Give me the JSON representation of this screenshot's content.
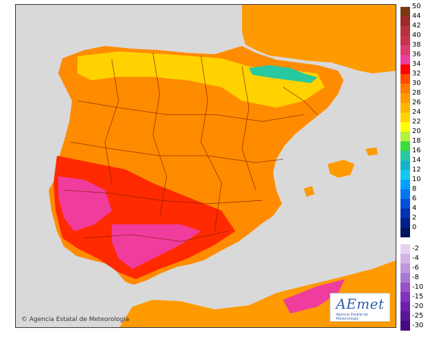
{
  "map": {
    "sea_color": "#d9d9d9",
    "land_color": "#ff9900",
    "attribution": "Agencia Estatal de Meteorología",
    "copyright_symbol": "©"
  },
  "logo": {
    "text": "AEmet",
    "subtitle": "Agencia Estatal de Meteorología"
  },
  "legend": {
    "positive": [
      {
        "label": "50",
        "color": "#7a3812"
      },
      {
        "label": "44",
        "color": "#9e2a2a"
      },
      {
        "label": "42",
        "color": "#b4323c"
      },
      {
        "label": "40",
        "color": "#c8324a"
      },
      {
        "label": "38",
        "color": "#dc3c6e"
      },
      {
        "label": "36",
        "color": "#f03c9c"
      },
      {
        "label": "34",
        "color": "#ff0000"
      },
      {
        "label": "32",
        "color": "#ff4a00"
      },
      {
        "label": "30",
        "color": "#ff7a00"
      },
      {
        "label": "28",
        "color": "#ff9a00"
      },
      {
        "label": "26",
        "color": "#ffb400"
      },
      {
        "label": "24",
        "color": "#ffd200"
      },
      {
        "label": "22",
        "color": "#ffff00"
      },
      {
        "label": "20",
        "color": "#b4f03c"
      },
      {
        "label": "18",
        "color": "#3cdc3c"
      },
      {
        "label": "16",
        "color": "#28c8a0"
      },
      {
        "label": "14",
        "color": "#14b4c8"
      },
      {
        "label": "12",
        "color": "#14c8f0"
      },
      {
        "label": "10",
        "color": "#00a0ff"
      },
      {
        "label": "8",
        "color": "#0078f0"
      },
      {
        "label": "6",
        "color": "#0050dc"
      },
      {
        "label": "4",
        "color": "#0032b4"
      },
      {
        "label": "2",
        "color": "#00208c"
      },
      {
        "label": "0",
        "color": "#00145a"
      }
    ],
    "negative": [
      {
        "label": "-2",
        "color": "#e6d2f0"
      },
      {
        "label": "-4",
        "color": "#d2b4e6"
      },
      {
        "label": "-6",
        "color": "#be96dc"
      },
      {
        "label": "-8",
        "color": "#aa78d2"
      },
      {
        "label": "-10",
        "color": "#9650c8"
      },
      {
        "label": "-15",
        "color": "#8232be"
      },
      {
        "label": "-20",
        "color": "#6e1eaa"
      },
      {
        "label": "-25",
        "color": "#5a1496"
      },
      {
        "label": "-30",
        "color": "#460a82"
      }
    ]
  }
}
